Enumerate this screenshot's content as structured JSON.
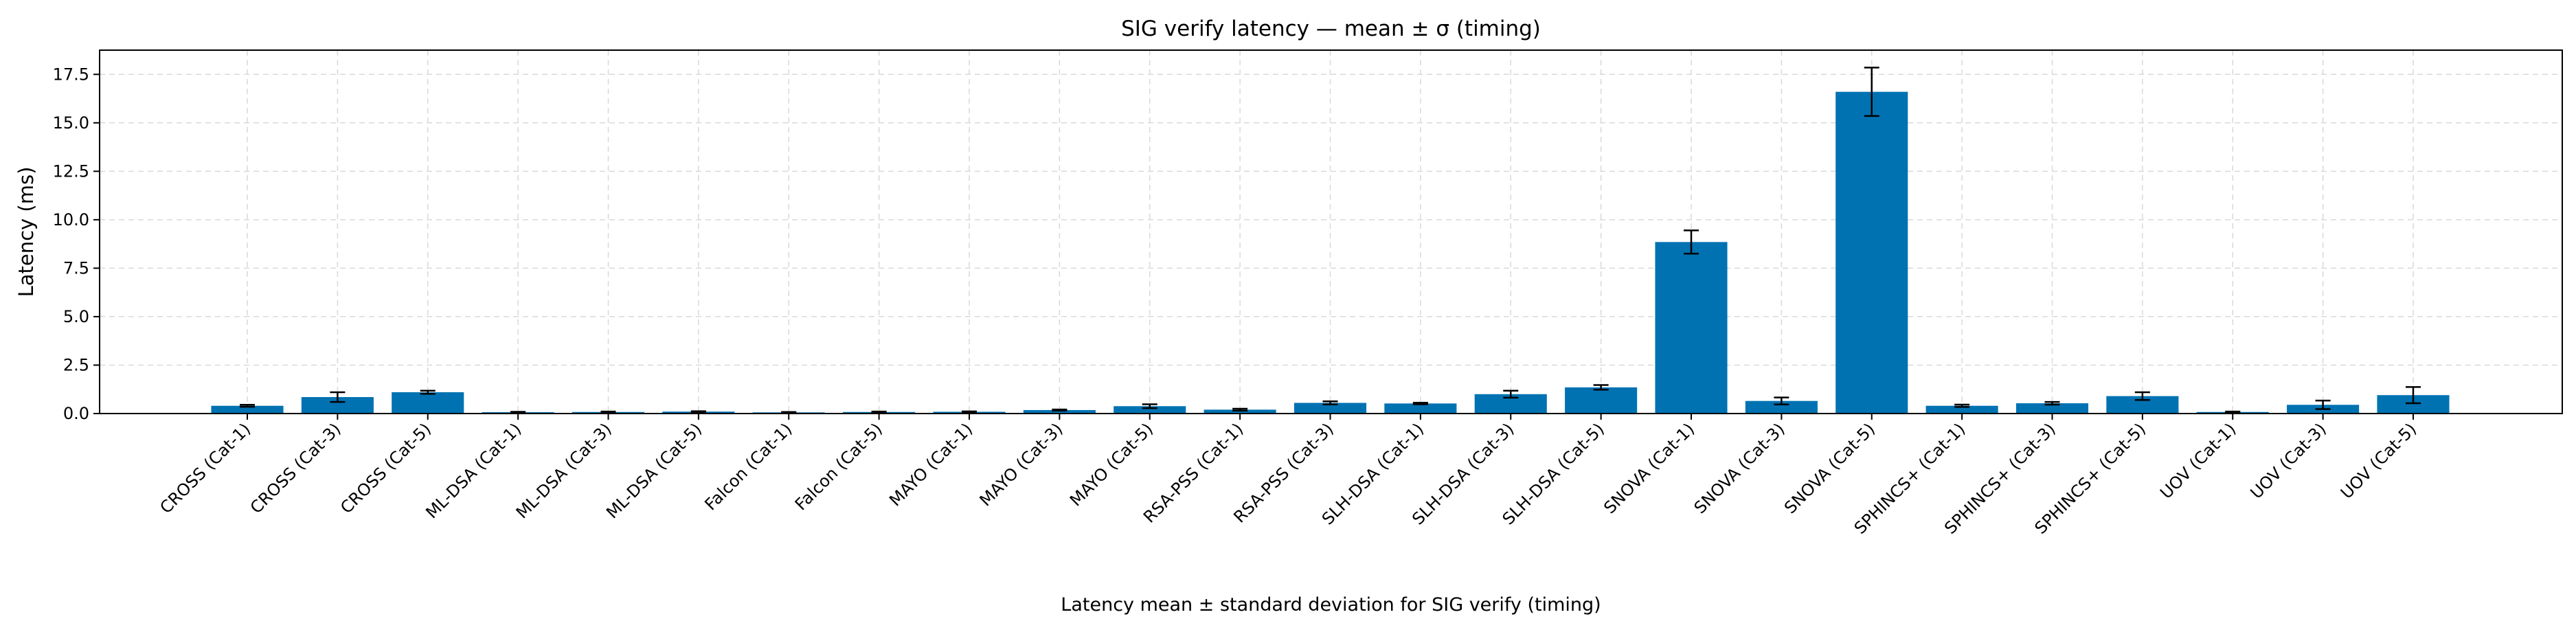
{
  "chart_data": {
    "type": "bar",
    "title": "SIG verify latency — mean ± σ (timing)",
    "xlabel": "",
    "ylabel": "Latency (ms)",
    "caption": "Latency mean ± standard deviation for SIG verify (timing)",
    "ylim": [
      0,
      18.75
    ],
    "yticks": [
      "0.0",
      "2.5",
      "5.0",
      "7.5",
      "10.0",
      "12.5",
      "15.0",
      "17.5"
    ],
    "grid": true,
    "legend": "none",
    "bar_color": "#0072b2",
    "categories": [
      "CROSS (Cat-1)",
      "CROSS (Cat-3)",
      "CROSS (Cat-5)",
      "ML-DSA (Cat-1)",
      "ML-DSA (Cat-3)",
      "ML-DSA (Cat-5)",
      "Falcon (Cat-1)",
      "Falcon (Cat-5)",
      "MAYO (Cat-1)",
      "MAYO (Cat-3)",
      "MAYO (Cat-5)",
      "RSA-PSS (Cat-1)",
      "RSA-PSS (Cat-3)",
      "SLH-DSA (Cat-1)",
      "SLH-DSA (Cat-3)",
      "SLH-DSA (Cat-5)",
      "SNOVA (Cat-1)",
      "SNOVA (Cat-3)",
      "SNOVA (Cat-5)",
      "SPHINCS+ (Cat-1)",
      "SPHINCS+ (Cat-3)",
      "SPHINCS+ (Cat-5)",
      "UOV (Cat-1)",
      "UOV (Cat-3)",
      "UOV (Cat-5)"
    ],
    "values": [
      0.4,
      0.85,
      1.1,
      0.07,
      0.08,
      0.1,
      0.06,
      0.08,
      0.09,
      0.18,
      0.38,
      0.2,
      0.55,
      0.52,
      1.0,
      1.35,
      8.85,
      0.65,
      16.6,
      0.4,
      0.53,
      0.9,
      0.08,
      0.45,
      0.95
    ],
    "errors": [
      0.05,
      0.25,
      0.08,
      0.02,
      0.02,
      0.02,
      0.02,
      0.02,
      0.02,
      0.03,
      0.1,
      0.05,
      0.08,
      0.04,
      0.18,
      0.12,
      0.6,
      0.18,
      1.25,
      0.06,
      0.07,
      0.2,
      0.02,
      0.22,
      0.42
    ]
  }
}
